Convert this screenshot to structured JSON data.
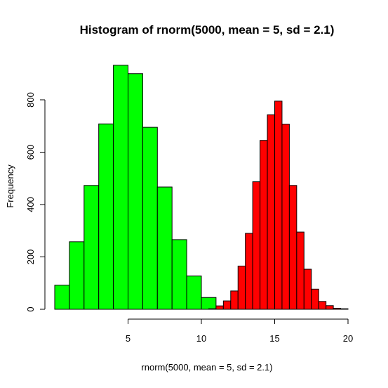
{
  "chart_data": {
    "type": "histogram",
    "title": "Histogram of rnorm(5000, mean = 5, sd = 2.1)",
    "xlabel": "rnorm(5000, mean = 5, sd = 2.1)",
    "ylabel": "Frequency",
    "xlim": [
      0,
      20
    ],
    "ylim": [
      0,
      940
    ],
    "x_ticks": [
      5,
      10,
      15,
      20
    ],
    "y_ticks": [
      0,
      200,
      400,
      600,
      800
    ],
    "series": [
      {
        "color": "#00ff00",
        "bins": [
          {
            "x0": 0,
            "x1": 1,
            "count": 92
          },
          {
            "x0": 1,
            "x1": 2,
            "count": 258
          },
          {
            "x0": 2,
            "x1": 3,
            "count": 473
          },
          {
            "x0": 3,
            "x1": 4,
            "count": 708
          },
          {
            "x0": 4,
            "x1": 5,
            "count": 932
          },
          {
            "x0": 5,
            "x1": 6,
            "count": 900
          },
          {
            "x0": 6,
            "x1": 7,
            "count": 695
          },
          {
            "x0": 7,
            "x1": 8,
            "count": 467
          },
          {
            "x0": 8,
            "x1": 9,
            "count": 266
          },
          {
            "x0": 9,
            "x1": 10,
            "count": 127
          },
          {
            "x0": 10,
            "x1": 11,
            "count": 45
          }
        ]
      },
      {
        "color": "#ff0000",
        "bins": [
          {
            "x0": 10.5,
            "x1": 11,
            "count": 2
          },
          {
            "x0": 11,
            "x1": 11.5,
            "count": 13
          },
          {
            "x0": 11.5,
            "x1": 12,
            "count": 32
          },
          {
            "x0": 12,
            "x1": 12.5,
            "count": 70
          },
          {
            "x0": 12.5,
            "x1": 13,
            "count": 165
          },
          {
            "x0": 13,
            "x1": 13.5,
            "count": 290
          },
          {
            "x0": 13.5,
            "x1": 14,
            "count": 487
          },
          {
            "x0": 14,
            "x1": 14.5,
            "count": 645
          },
          {
            "x0": 14.5,
            "x1": 15,
            "count": 743
          },
          {
            "x0": 15,
            "x1": 15.5,
            "count": 795
          },
          {
            "x0": 15.5,
            "x1": 16,
            "count": 707
          },
          {
            "x0": 16,
            "x1": 16.5,
            "count": 473
          },
          {
            "x0": 16.5,
            "x1": 17,
            "count": 295
          },
          {
            "x0": 17,
            "x1": 17.5,
            "count": 153
          },
          {
            "x0": 17.5,
            "x1": 18,
            "count": 77
          },
          {
            "x0": 18,
            "x1": 18.5,
            "count": 30
          },
          {
            "x0": 18.5,
            "x1": 19,
            "count": 14
          },
          {
            "x0": 19,
            "x1": 19.5,
            "count": 4
          },
          {
            "x0": 19.5,
            "x1": 20,
            "count": 2
          }
        ]
      }
    ]
  }
}
